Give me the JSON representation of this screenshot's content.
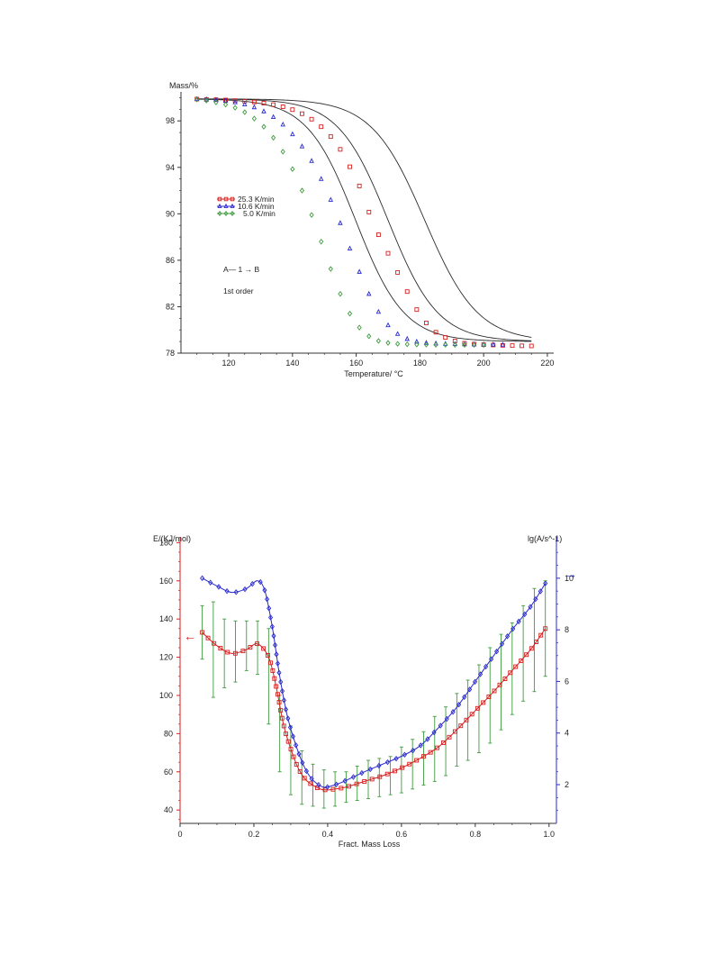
{
  "chart_data": [
    {
      "type": "scatter",
      "title": "",
      "xlabel": "Temperature/ °C",
      "ylabel": "Mass/%",
      "xlim": [
        105,
        222
      ],
      "ylim": [
        78,
        100.5
      ],
      "xticks": [
        "120",
        "140",
        "160",
        "180",
        "200",
        "220"
      ],
      "yticks": [
        "78",
        "82",
        "86",
        "90",
        "94",
        "98"
      ],
      "legend": {
        "placement": "center-left",
        "entries": [
          "25.3 K/min",
          "10.6 K/min",
          "5.0 K/min"
        ]
      },
      "annotation_reaction": "A— 1 → B",
      "annotation_order": "1st order",
      "colors": {
        "red": "#d62020",
        "blue": "#2a2ad0",
        "green": "#3f9a3f",
        "fit": "#2b2b2b"
      },
      "series": [
        {
          "name": "25.3 K/min",
          "color": "#d62020",
          "marker": "square",
          "model": {
            "Tmid": 181.5,
            "w": 8.3
          },
          "x": [
            110,
            113,
            116,
            119,
            122,
            125,
            128,
            131,
            134,
            137,
            140,
            143,
            146,
            149,
            152,
            155,
            158,
            161,
            164,
            167,
            170,
            173,
            176,
            179,
            182,
            185,
            188,
            191,
            194,
            197,
            200,
            203,
            206,
            209,
            212,
            215
          ],
          "y": [
            99.88,
            99.85,
            99.83,
            99.8,
            99.75,
            99.7,
            99.63,
            99.53,
            99.4,
            99.22,
            98.97,
            98.62,
            98.15,
            97.5,
            96.65,
            95.55,
            94.05,
            92.4,
            90.15,
            88.2,
            86.6,
            84.95,
            83.3,
            81.75,
            80.6,
            79.8,
            79.35,
            79.05,
            78.85,
            78.78,
            78.73,
            78.7,
            78.67,
            78.65,
            78.63,
            78.62
          ]
        },
        {
          "name": "10.6 K/min",
          "color": "#2a2ad0",
          "marker": "triangle",
          "model": {
            "Tmid": 170,
            "w": 7.8
          },
          "x": [
            110,
            113,
            116,
            119,
            122,
            125,
            128,
            131,
            134,
            137,
            140,
            143,
            146,
            149,
            152,
            155,
            158,
            161,
            164,
            167,
            170,
            173,
            176,
            179,
            182,
            185,
            188,
            191,
            194,
            197,
            200,
            203,
            206
          ],
          "y": [
            99.88,
            99.85,
            99.8,
            99.72,
            99.6,
            99.42,
            99.17,
            98.82,
            98.33,
            97.68,
            96.85,
            95.8,
            94.55,
            93.0,
            91.2,
            89.2,
            87.0,
            85.0,
            83.1,
            81.55,
            80.4,
            79.65,
            79.22,
            78.98,
            78.88,
            78.83,
            78.8,
            78.78,
            78.76,
            78.75,
            78.74,
            78.73,
            78.72
          ]
        },
        {
          "name": "5.0 K/min",
          "color": "#3f9a3f",
          "marker": "diamond",
          "model": {
            "Tmid": 159.8,
            "w": 7.6
          },
          "x": [
            110,
            113,
            116,
            119,
            122,
            125,
            128,
            131,
            134,
            137,
            140,
            143,
            146,
            149,
            152,
            155,
            158,
            161,
            164,
            167,
            170,
            173,
            176,
            179,
            182,
            185,
            188,
            191,
            194,
            197,
            200
          ],
          "y": [
            99.85,
            99.75,
            99.6,
            99.4,
            99.13,
            98.75,
            98.2,
            97.5,
            96.55,
            95.35,
            93.85,
            92.0,
            89.9,
            87.6,
            85.25,
            83.1,
            81.4,
            80.2,
            79.45,
            79.05,
            78.88,
            78.8,
            78.76,
            78.74,
            78.73,
            78.72,
            78.72,
            78.71,
            78.71,
            78.71,
            78.71
          ]
        }
      ]
    },
    {
      "type": "line",
      "title": "",
      "xlabel": "Fract. Mass Loss",
      "ylabel": "E/(KJ/mol)",
      "ylabel_right": "lg(A/s^-1)",
      "xlim": [
        0,
        1.02
      ],
      "ylim": [
        33,
        183
      ],
      "ylim_right": [
        0.5,
        11.6
      ],
      "xticks": [
        "0",
        "0.2",
        "0.4",
        "0.6",
        "0.8",
        "1.0"
      ],
      "yticks": [
        "40",
        "60",
        "80",
        "100",
        "120",
        "140",
        "160",
        "180"
      ],
      "yticks_right": [
        "2",
        "4",
        "6",
        "8",
        "10"
      ],
      "colors": {
        "E": "#d62020",
        "A": "#2a2ad0",
        "errorbar": "#3f9a3f"
      },
      "series": [
        {
          "name": "E",
          "axis": "left",
          "color": "#d62020",
          "marker": "square",
          "x": [
            0.06,
            0.1,
            0.14,
            0.18,
            0.21,
            0.24,
            0.26,
            0.28,
            0.3,
            0.32,
            0.34,
            0.36,
            0.38,
            0.4,
            0.42,
            0.45,
            0.5,
            0.55,
            0.6,
            0.65,
            0.7,
            0.75,
            0.8,
            0.85,
            0.9,
            0.95,
            0.99
          ],
          "y": [
            133,
            126,
            122,
            124,
            127,
            120,
            105,
            85,
            72,
            62,
            56,
            53,
            51,
            50.5,
            51,
            52,
            55,
            58,
            62,
            67,
            73,
            82,
            92,
            102,
            113,
            124,
            135
          ]
        },
        {
          "name": "lg A",
          "axis": "right",
          "color": "#2a2ad0",
          "marker": "diamond",
          "x": [
            0.06,
            0.1,
            0.14,
            0.18,
            0.21,
            0.23,
            0.25,
            0.27,
            0.29,
            0.31,
            0.33,
            0.35,
            0.37,
            0.39,
            0.41,
            0.44,
            0.5,
            0.55,
            0.6,
            0.65,
            0.7,
            0.75,
            0.8,
            0.85,
            0.9,
            0.95,
            0.99
          ],
          "y": [
            10.0,
            9.7,
            9.45,
            9.6,
            9.9,
            9.5,
            8.1,
            6.2,
            4.7,
            3.7,
            2.9,
            2.35,
            2.05,
            1.9,
            1.95,
            2.1,
            2.5,
            2.8,
            3.1,
            3.5,
            4.2,
            5.0,
            6.0,
            7.0,
            8.0,
            8.9,
            9.8
          ]
        }
      ],
      "error_bars": {
        "x": [
          0.06,
          0.09,
          0.12,
          0.15,
          0.18,
          0.21,
          0.24,
          0.27,
          0.3,
          0.33,
          0.36,
          0.39,
          0.42,
          0.45,
          0.48,
          0.51,
          0.54,
          0.57,
          0.6,
          0.63,
          0.66,
          0.69,
          0.72,
          0.75,
          0.78,
          0.81,
          0.84,
          0.87,
          0.9,
          0.93,
          0.96,
          0.99
        ],
        "center": [
          133,
          124,
          122,
          123,
          126,
          125,
          110,
          80,
          66,
          57,
          53,
          51,
          51,
          52,
          54,
          56,
          57,
          58,
          61,
          64,
          67,
          72,
          76,
          82,
          87,
          93,
          100,
          107,
          114,
          122,
          129,
          135
        ],
        "half": [
          14,
          25,
          18,
          16,
          13,
          14,
          25,
          20,
          18,
          14,
          11,
          10,
          9,
          8,
          9,
          10,
          10,
          10,
          12,
          13,
          14,
          17,
          18,
          19,
          21,
          23,
          25,
          25,
          24,
          25,
          27,
          25
        ]
      },
      "arrows": {
        "left_axis": "←",
        "right_axis": "→"
      }
    }
  ]
}
